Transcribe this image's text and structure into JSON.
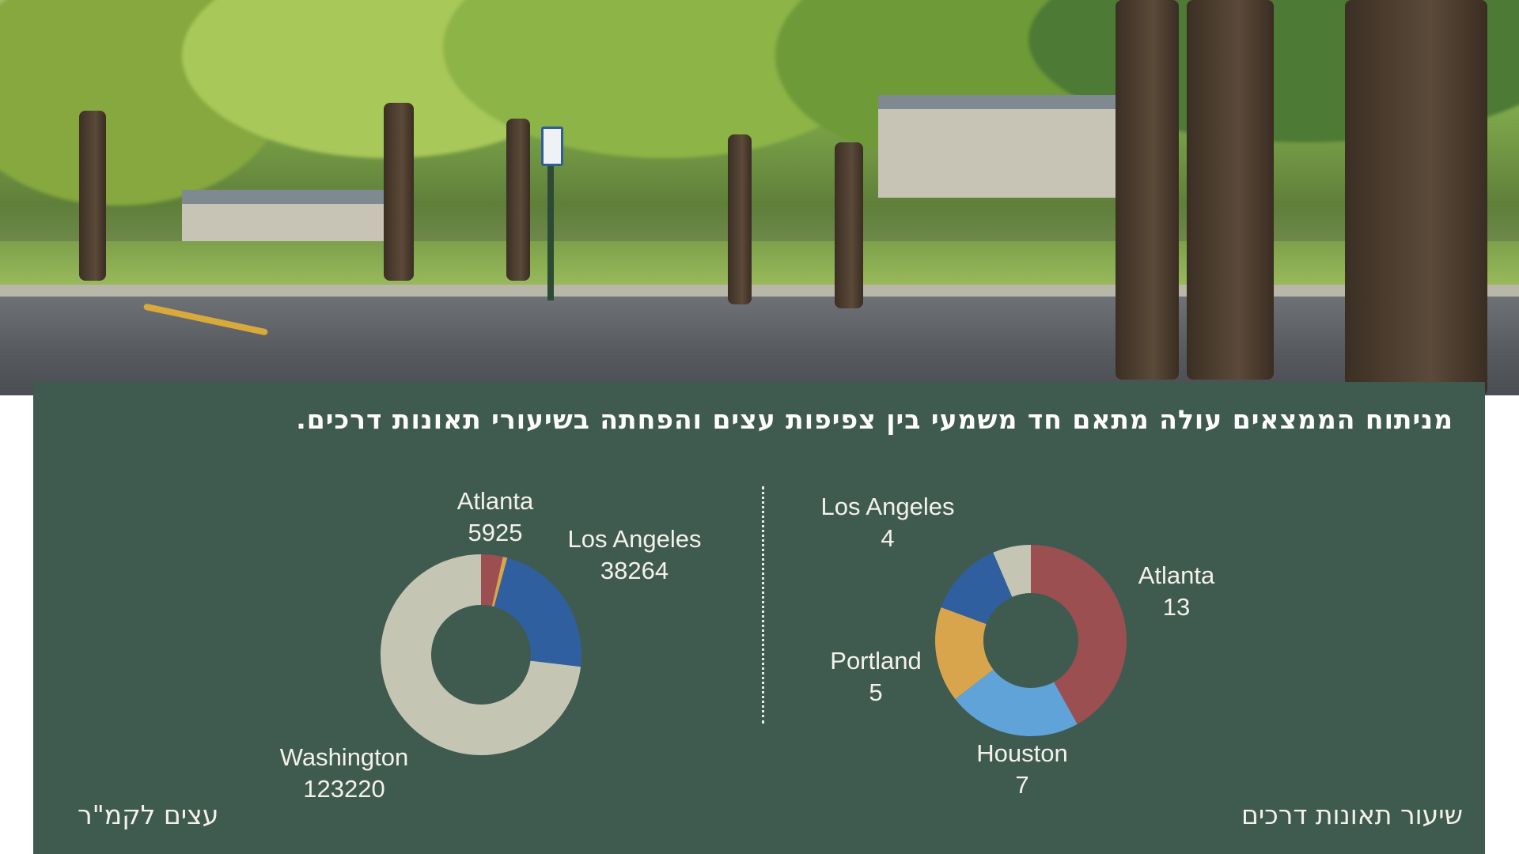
{
  "headline": "מניתוח הממצאים עולה מתאם חד משמעי בין צפיפות עצים והפחתה בשיעורי תאונות דרכים.",
  "chart_data": [
    {
      "type": "pie",
      "title": "עצים לקמ\"ר",
      "donut": true,
      "slices": [
        {
          "label": "Atlanta",
          "value": 5925,
          "value_label": "5925",
          "color": "#9b4f51"
        },
        {
          "label": "",
          "value": 1200,
          "value_label": "",
          "color": "#d9a54c"
        },
        {
          "label": "Los Angeles",
          "value": 38264,
          "value_label": "38264",
          "color": "#2f5f9e"
        },
        {
          "label": "Washington",
          "value": 123220,
          "value_label": "123220",
          "color": "#c5c5b4"
        }
      ]
    },
    {
      "type": "pie",
      "title": "שיעור תאונות דרכים",
      "donut": true,
      "slices": [
        {
          "label": "Atlanta",
          "value": 13,
          "value_label": "13",
          "color": "#9b4f51"
        },
        {
          "label": "Houston",
          "value": 7,
          "value_label": "7",
          "color": "#5fa3d9"
        },
        {
          "label": "Portland",
          "value": 5,
          "value_label": "5",
          "color": "#d9a54c"
        },
        {
          "label": "Los Angeles",
          "value": 4,
          "value_label": "4",
          "color": "#2f5f9e"
        },
        {
          "label": "",
          "value": 2,
          "value_label": "",
          "color": "#c5c5b4"
        }
      ]
    }
  ]
}
